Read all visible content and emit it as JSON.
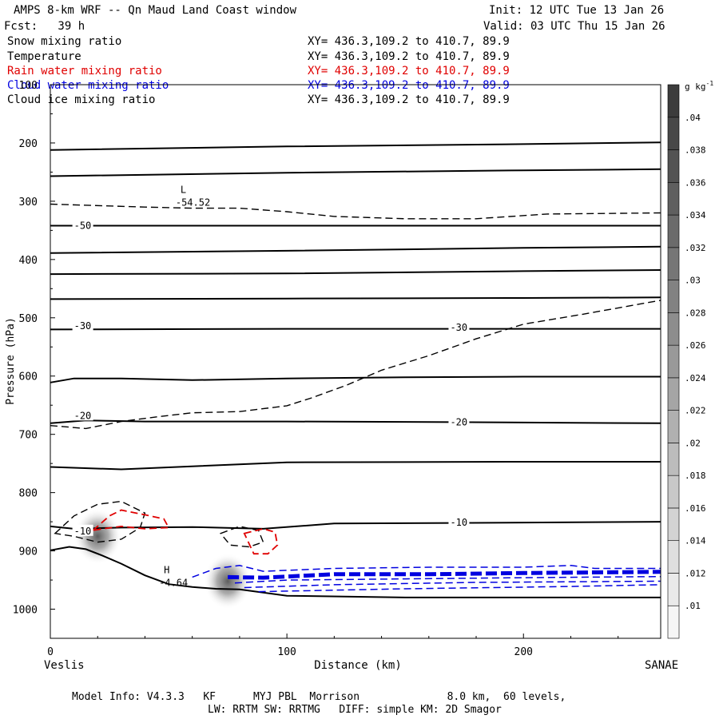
{
  "header": {
    "title": "AMPS 8-km WRF -- Qn Maud Land Coast window",
    "init": "Init: 12 UTC Tue 13 Jan 26",
    "fcst": "Fcst:   39 h",
    "valid": "Valid: 03 UTC Thu 15 Jan 26"
  },
  "fields": [
    {
      "name": "Snow mixing ratio",
      "xy": "XY= 436.3,109.2 to 410.7, 89.9",
      "color": "#000000"
    },
    {
      "name": "Temperature",
      "xy": "XY= 436.3,109.2 to 410.7, 89.9",
      "color": "#000000"
    },
    {
      "name": "Rain water mixing ratio",
      "xy": "XY= 436.3,109.2 to 410.7, 89.9",
      "color": "#e00000"
    },
    {
      "name": "Cloud water mixing ratio",
      "xy": "XY= 436.3,109.2 to 410.7, 89.9",
      "color": "#0000e0"
    },
    {
      "name": "Cloud ice mixing ratio",
      "xy": "XY= 436.3,109.2 to 410.7, 89.9",
      "color": "#000000"
    }
  ],
  "footer": {
    "line1": "Model Info: V4.3.3   KF      MYJ PBL  Morrison              8.0 km,  60 levels,",
    "line2": "LW: RRTM SW: RRTMG   DIFF: simple KM: 2D Smagor"
  },
  "chart_data": {
    "type": "cross-section contour",
    "xlabel": "Distance (km)",
    "ylabel": "Pressure (hPa)",
    "xlim": [
      0,
      258
    ],
    "ylim": [
      1050,
      100
    ],
    "x_ticks": [
      0,
      100,
      200
    ],
    "y_ticks": [
      100,
      200,
      300,
      400,
      500,
      600,
      700,
      800,
      900,
      1000
    ],
    "endpoint_labels": {
      "left": "Veslis",
      "right": "SANAE"
    },
    "colorbar": {
      "unit": "g kg",
      "unit_exp": "-1",
      "levels": [
        ".01",
        ".012",
        ".014",
        ".016",
        ".018",
        ".02",
        ".022",
        ".024",
        ".026",
        ".028",
        ".03",
        ".032",
        ".034",
        ".036",
        ".038",
        ".04"
      ]
    },
    "temperature_labels": [
      {
        "text": "-50",
        "x": 10,
        "p": 342
      },
      {
        "text": "-30",
        "x": 10,
        "p": 514
      },
      {
        "text": "-30",
        "x": 169,
        "p": 517
      },
      {
        "text": "-20",
        "x": 10,
        "p": 668
      },
      {
        "text": "-20",
        "x": 169,
        "p": 679
      },
      {
        "text": "-10",
        "x": 10,
        "p": 866
      },
      {
        "text": "-10",
        "x": 169,
        "p": 851
      }
    ],
    "extrema": [
      {
        "type": "L",
        "value": "-54.52",
        "x": 55,
        "p": 308
      },
      {
        "type": "H",
        "value": "-4.64",
        "x": 48,
        "p": 960
      }
    ],
    "temperature_isotherms": [
      {
        "x": [
          0,
          100,
          200,
          258
        ],
        "p": [
          212,
          206,
          202,
          199
        ]
      },
      {
        "x": [
          0,
          100,
          200,
          258
        ],
        "p": [
          257,
          251,
          247,
          245
        ]
      },
      {
        "x": [
          0,
          100,
          200,
          258
        ],
        "p": [
          342,
          342,
          342,
          342
        ]
      },
      {
        "x": [
          0,
          100,
          200,
          258
        ],
        "p": [
          389,
          385,
          380,
          378
        ]
      },
      {
        "x": [
          0,
          100,
          200,
          258
        ],
        "p": [
          425,
          424,
          420,
          418
        ]
      },
      {
        "x": [
          0,
          100,
          200,
          258
        ],
        "p": [
          468,
          467,
          466,
          465
        ]
      },
      {
        "x": [
          0,
          100,
          200,
          258
        ],
        "p": [
          520,
          519,
          519,
          519
        ]
      },
      {
        "x": [
          0,
          10,
          30,
          60,
          100,
          150,
          200,
          258
        ],
        "p": [
          611,
          604,
          604,
          607,
          604,
          602,
          601,
          601
        ]
      },
      {
        "x": [
          0,
          15,
          40,
          100,
          170,
          258
        ],
        "p": [
          681,
          676,
          678,
          678,
          679,
          681
        ]
      },
      {
        "x": [
          0,
          30,
          100,
          200,
          258
        ],
        "p": [
          756,
          760,
          748,
          747,
          747
        ]
      },
      {
        "x": [
          0,
          10,
          30,
          60,
          90,
          120,
          170,
          258
        ],
        "p": [
          858,
          862,
          860,
          859,
          862,
          853,
          852,
          850
        ]
      },
      {
        "x": [
          0,
          8,
          15,
          22,
          30,
          40,
          50,
          60,
          70,
          80,
          100,
          150,
          258
        ],
        "p": [
          899,
          893,
          897,
          908,
          922,
          942,
          957,
          962,
          965,
          966,
          977,
          980,
          980
        ]
      }
    ],
    "snow_contours_dashed_black": [
      {
        "x": [
          0,
          40,
          60,
          80,
          100,
          120,
          150,
          180,
          210,
          258
        ],
        "p": [
          305,
          310,
          312,
          312,
          318,
          326,
          330,
          330,
          322,
          320
        ]
      },
      {
        "x": [
          0,
          15,
          25,
          30,
          45,
          60,
          80,
          100,
          110,
          125,
          140,
          160,
          180,
          200,
          225,
          258
        ],
        "p": [
          685,
          690,
          682,
          678,
          670,
          663,
          661,
          651,
          638,
          616,
          590,
          565,
          536,
          511,
          494,
          470
        ]
      },
      {
        "type": "cell",
        "x": [
          2,
          10,
          20,
          30,
          40,
          38,
          30,
          20,
          10,
          2
        ],
        "p": [
          870,
          840,
          820,
          815,
          835,
          860,
          880,
          885,
          875,
          870
        ]
      },
      {
        "type": "cell",
        "x": [
          72,
          80,
          88,
          90,
          84,
          76,
          72
        ],
        "p": [
          870,
          858,
          865,
          885,
          893,
          890,
          870
        ]
      }
    ],
    "rain_contours_red": [
      {
        "x": [
          18,
          25,
          30,
          40,
          48,
          50,
          40,
          30,
          22,
          18
        ],
        "p": [
          865,
          840,
          830,
          838,
          845,
          860,
          862,
          858,
          862,
          865
        ]
      },
      {
        "x": [
          82,
          90,
          95,
          96,
          92,
          86,
          82
        ],
        "p": [
          870,
          862,
          868,
          890,
          905,
          905,
          870
        ]
      }
    ],
    "cloud_water_contours_blue": [
      {
        "x": [
          60,
          70,
          80,
          90,
          120,
          160,
          200,
          220,
          230,
          258
        ],
        "p": [
          945,
          930,
          925,
          935,
          930,
          928,
          928,
          925,
          930,
          930
        ]
      },
      {
        "x": [
          75,
          90,
          120,
          160,
          200,
          258
        ],
        "p": [
          945,
          946,
          940,
          940,
          938,
          936
        ]
      },
      {
        "x": [
          78,
          100,
          150,
          200,
          258
        ],
        "p": [
          955,
          950,
          948,
          946,
          944
        ]
      },
      {
        "x": [
          82,
          120,
          180,
          258
        ],
        "p": [
          963,
          958,
          954,
          952
        ]
      },
      {
        "x": [
          88,
          150,
          220,
          258
        ],
        "p": [
          970,
          965,
          961,
          958
        ]
      }
    ],
    "ice_maxima_shading": [
      {
        "x": 20,
        "p": 875,
        "max": ".036"
      },
      {
        "x": 75,
        "p": 952,
        "max": ".034"
      }
    ]
  }
}
